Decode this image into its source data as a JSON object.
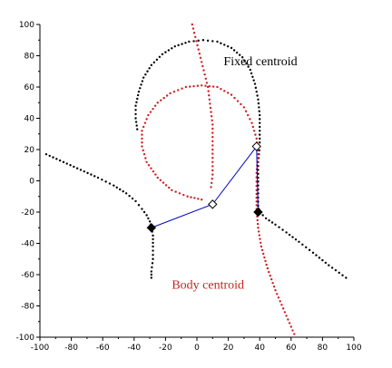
{
  "chart_data": {
    "type": "scatter",
    "xlim": [
      -100,
      100
    ],
    "ylim": [
      -100,
      100
    ],
    "x_ticks": [
      -100,
      -80,
      -60,
      -40,
      -20,
      0,
      20,
      40,
      60,
      80,
      100
    ],
    "y_ticks": [
      -100,
      -80,
      -60,
      -40,
      -20,
      0,
      20,
      40,
      60,
      80,
      100
    ],
    "grid": false,
    "annotations": [
      {
        "text": "Fixed centroid",
        "x": 17,
        "y": 74,
        "color": "#000000"
      },
      {
        "text": "Body centroid",
        "x": -16,
        "y": -69,
        "color": "#cc2222"
      }
    ],
    "series": [
      {
        "name": "Fixed centroid",
        "color": "#000000",
        "style": "dots",
        "segments": [
          [
            [
              -38,
              33
            ],
            [
              -39,
              40
            ],
            [
              -39,
              48
            ],
            [
              -37,
              57
            ],
            [
              -34,
              66
            ],
            [
              -29,
              74
            ],
            [
              -22,
              81
            ],
            [
              -14,
              86
            ],
            [
              -5,
              89
            ],
            [
              4,
              90
            ],
            [
              13,
              89
            ],
            [
              22,
              85
            ],
            [
              29,
              79
            ],
            [
              34,
              71
            ],
            [
              37,
              62
            ],
            [
              39,
              52
            ],
            [
              40,
              42
            ],
            [
              40,
              32
            ],
            [
              40,
              22
            ],
            [
              39,
              12
            ],
            [
              39,
              2
            ],
            [
              39,
              -8
            ],
            [
              39,
              -16
            ],
            [
              40,
              -20
            ],
            [
              44,
              -24
            ],
            [
              50,
              -28
            ],
            [
              57,
              -33
            ],
            [
              65,
              -39
            ],
            [
              74,
              -46
            ],
            [
              84,
              -54
            ],
            [
              95,
              -62
            ]
          ],
          [
            [
              -96,
              17
            ],
            [
              -85,
              12
            ],
            [
              -74,
              7
            ],
            [
              -63,
              2
            ],
            [
              -53,
              -3
            ],
            [
              -45,
              -8
            ],
            [
              -39,
              -13
            ],
            [
              -35,
              -18
            ],
            [
              -32,
              -22
            ],
            [
              -30,
              -26
            ],
            [
              -29,
              -30
            ],
            [
              -28,
              -35
            ],
            [
              -28,
              -42
            ],
            [
              -28,
              -50
            ],
            [
              -29,
              -58
            ],
            [
              -29,
              -62
            ]
          ]
        ]
      },
      {
        "name": "Body centroid",
        "color": "#cc2222",
        "style": "dots",
        "segments": [
          [
            [
              -3,
              100
            ],
            [
              -1,
              92
            ],
            [
              1,
              84
            ],
            [
              3,
              76
            ],
            [
              5,
              68
            ],
            [
              7,
              60
            ],
            [
              8,
              52
            ],
            [
              9,
              44
            ],
            [
              10,
              36
            ],
            [
              10,
              28
            ],
            [
              10,
              20
            ],
            [
              10,
              12
            ],
            [
              10,
              4
            ],
            [
              9,
              -4
            ]
          ],
          [
            [
              3,
              -12
            ],
            [
              -6,
              -10
            ],
            [
              -16,
              -6
            ],
            [
              -25,
              2
            ],
            [
              -32,
              12
            ],
            [
              -35,
              22
            ],
            [
              -35,
              32
            ],
            [
              -31,
              42
            ],
            [
              -25,
              50
            ],
            [
              -17,
              56
            ],
            [
              -7,
              60
            ],
            [
              3,
              61
            ],
            [
              13,
              60
            ],
            [
              22,
              55
            ],
            [
              30,
              47
            ],
            [
              35,
              37
            ],
            [
              38,
              27
            ],
            [
              39,
              17
            ],
            [
              38,
              5
            ],
            [
              38,
              -6
            ],
            [
              38,
              -18
            ],
            [
              39,
              -30
            ],
            [
              41,
              -42
            ],
            [
              45,
              -56
            ],
            [
              50,
              -70
            ],
            [
              56,
              -84
            ],
            [
              62,
              -98
            ]
          ]
        ]
      }
    ],
    "linkage": {
      "color": "#0000cc",
      "path": [
        [
          -29,
          -30
        ],
        [
          10,
          -15
        ],
        [
          38,
          22
        ],
        [
          39,
          -20
        ]
      ]
    },
    "markers": [
      {
        "shape": "diamond",
        "filled": true,
        "x": -29,
        "y": -30
      },
      {
        "shape": "diamond",
        "filled": false,
        "x": 10,
        "y": -15
      },
      {
        "shape": "diamond",
        "filled": false,
        "x": 38,
        "y": 22
      },
      {
        "shape": "diamond",
        "filled": true,
        "x": 39,
        "y": -20
      }
    ]
  }
}
